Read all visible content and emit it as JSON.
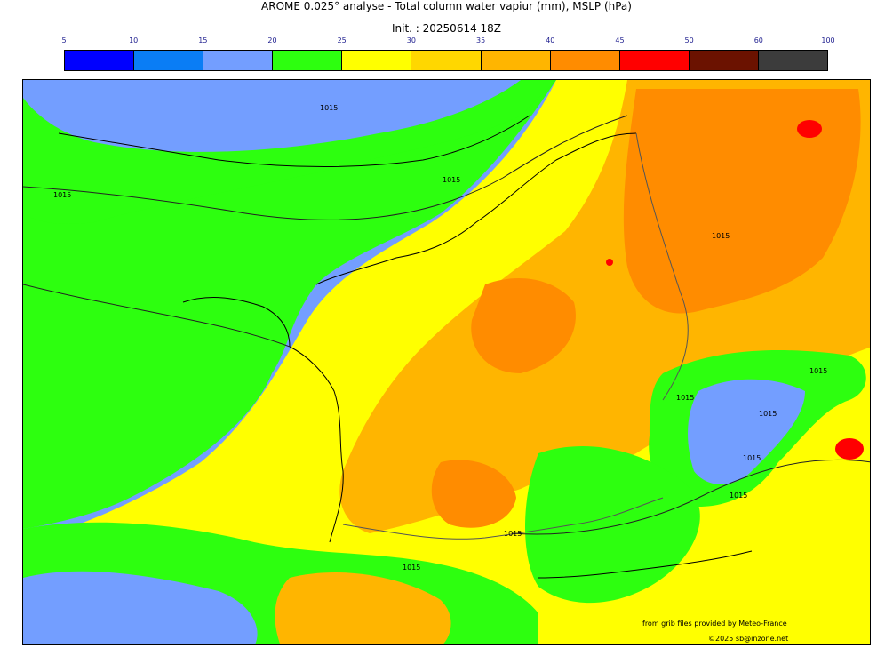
{
  "header": {
    "title": "AROME 0.025° analyse - Total column water vapiur (mm), MSLP (hPa)",
    "init": "Init. : 20250614 18Z"
  },
  "legend": {
    "ticks": [
      "5",
      "10",
      "15",
      "20",
      "25",
      "30",
      "35",
      "40",
      "45",
      "50",
      "60",
      "100"
    ],
    "colors": [
      "#0000ff",
      "#0a7df5",
      "#739eff",
      "#2dff0f",
      "#ffff00",
      "#ffd700",
      "#ffb500",
      "#ff8c00",
      "#ff0000",
      "#6b1200",
      "#3c3c3c"
    ]
  },
  "map": {
    "isobar_labels": [
      "1015",
      "1015",
      "1015",
      "1015",
      "1015",
      "1015",
      "1015",
      "1015",
      "1015",
      "1015",
      "1015"
    ],
    "credits": {
      "source": "from grib files provided by Meteo-France",
      "copyright": "©2025 sb@inzone.net"
    }
  }
}
